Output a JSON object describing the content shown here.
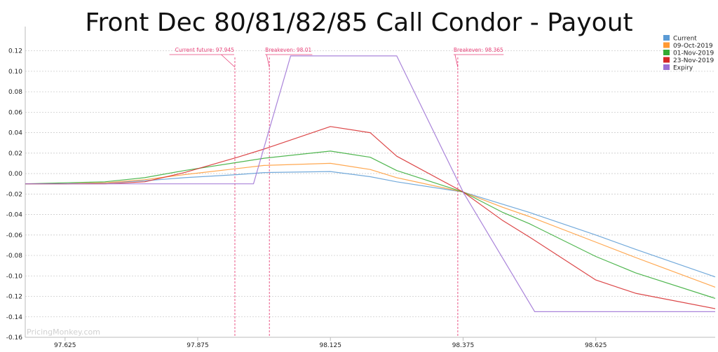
{
  "chart_data": {
    "type": "line",
    "title": "Front Dec 80/81/82/85 Call Condor - Payout",
    "xlabel": "",
    "ylabel": "",
    "x_ticks": [
      "97.625",
      "97.875",
      "98.125",
      "98.375",
      "98.625"
    ],
    "x_tick_values": [
      97.625,
      97.875,
      98.125,
      98.375,
      98.625
    ],
    "y_ticks": [
      "0.12",
      "0.10",
      "0.08",
      "0.06",
      "0.04",
      "0.02",
      "0.00",
      "-0.02",
      "-0.04",
      "-0.06",
      "-0.08",
      "-0.10",
      "-0.12",
      "-0.14",
      "-0.16"
    ],
    "y_tick_values": [
      0.12,
      0.1,
      0.08,
      0.06,
      0.04,
      0.02,
      0.0,
      -0.02,
      -0.04,
      -0.06,
      -0.08,
      -0.1,
      -0.12,
      -0.14,
      -0.16
    ],
    "xlim": [
      97.55,
      98.85
    ],
    "ylim": [
      -0.16,
      0.13
    ],
    "grid": "horizontal dashed",
    "legend_position": "top-right",
    "series": [
      {
        "name": "Current",
        "color": "#5b9bd5",
        "x": [
          97.55,
          97.625,
          97.7,
          97.775,
          97.85,
          97.95,
          98.0,
          98.125,
          98.2,
          98.25,
          98.375,
          98.45,
          98.5,
          98.625,
          98.7,
          98.85
        ],
        "y": [
          -0.01,
          -0.01,
          -0.009,
          -0.007,
          -0.004,
          -0.001,
          0.001,
          0.002,
          -0.003,
          -0.008,
          -0.018,
          -0.03,
          -0.038,
          -0.06,
          -0.074,
          -0.101
        ]
      },
      {
        "name": "09-Oct-2019",
        "color": "#ff9933",
        "x": [
          97.55,
          97.625,
          97.7,
          97.775,
          97.85,
          97.95,
          98.0,
          98.125,
          98.2,
          98.25,
          98.375,
          98.45,
          98.5,
          98.625,
          98.7,
          98.85
        ],
        "y": [
          -0.01,
          -0.01,
          -0.009,
          -0.006,
          -0.001,
          0.005,
          0.008,
          0.01,
          0.004,
          -0.004,
          -0.018,
          -0.033,
          -0.042,
          -0.067,
          -0.082,
          -0.111
        ]
      },
      {
        "name": "01-Nov-2019",
        "color": "#33aa33",
        "x": [
          97.55,
          97.625,
          97.7,
          97.775,
          97.85,
          97.95,
          98.0,
          98.125,
          98.2,
          98.25,
          98.375,
          98.45,
          98.5,
          98.625,
          98.7,
          98.85
        ],
        "y": [
          -0.01,
          -0.009,
          -0.008,
          -0.004,
          0.003,
          0.011,
          0.015,
          0.022,
          0.016,
          0.003,
          -0.018,
          -0.038,
          -0.049,
          -0.081,
          -0.097,
          -0.122
        ]
      },
      {
        "name": "23-Nov-2019",
        "color": "#d62728",
        "x": [
          97.55,
          97.625,
          97.7,
          97.775,
          97.85,
          97.95,
          98.0,
          98.125,
          98.2,
          98.25,
          98.375,
          98.45,
          98.5,
          98.625,
          98.7,
          98.85
        ],
        "y": [
          -0.01,
          -0.01,
          -0.01,
          -0.008,
          0.001,
          0.016,
          0.024,
          0.046,
          0.04,
          0.017,
          -0.018,
          -0.046,
          -0.062,
          -0.104,
          -0.117,
          -0.132
        ]
      },
      {
        "name": "Expiry",
        "color": "#9b6fd3",
        "x": [
          97.55,
          97.98,
          98.05,
          98.15,
          98.25,
          98.375,
          98.51,
          98.85
        ],
        "y": [
          -0.01,
          -0.01,
          0.115,
          0.115,
          0.115,
          -0.018,
          -0.135,
          -0.135
        ]
      }
    ],
    "annotations": [
      {
        "text": "Current future: 97.945",
        "x": 97.945
      },
      {
        "text": "Breakeven: 98.01",
        "x": 98.01
      },
      {
        "text": "Breakeven: 98.365",
        "x": 98.365
      }
    ],
    "watermark": "PricingMonkey.com"
  }
}
